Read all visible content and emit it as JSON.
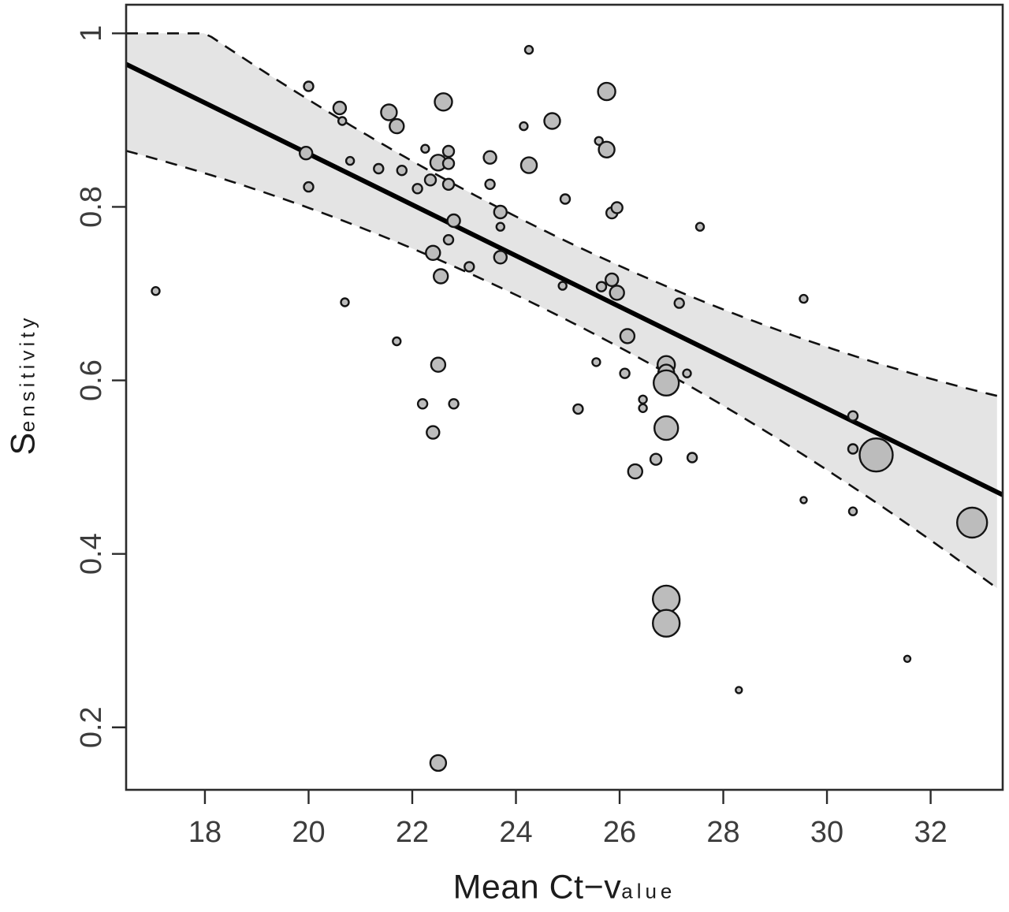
{
  "chart_data": {
    "type": "scatter",
    "subtype": "bubble-meta-regression",
    "title": "",
    "xlabel": "Mean Ct-value",
    "xlabel_parts": [
      "Mean Ct−v",
      "alue"
    ],
    "ylabel": "Sensitivity",
    "ylabel_parts": [
      "S",
      "ensitivity"
    ],
    "x_ticks": [
      18,
      20,
      22,
      24,
      26,
      28,
      30,
      32
    ],
    "y_ticks": [
      0.2,
      0.4,
      0.6,
      0.8,
      1
    ],
    "y_tick_labels": [
      "0.2",
      "0.4",
      "0.6",
      "0.8",
      "1"
    ],
    "xlim": [
      16.48,
      33.39
    ],
    "ylim": [
      0.128,
      1.033
    ],
    "grid": false,
    "legend": null,
    "regression_line": {
      "x": [
        16.48,
        33.39
      ],
      "y": [
        0.9645,
        0.468
      ]
    },
    "confidence_band": {
      "style": "dashed",
      "w_min": 0.045,
      "w_center_x": 24.5,
      "w_curvature": 0.000855,
      "clip_max_y": 1.0,
      "left_upper": 1.0,
      "left_lower": 0.865,
      "right_upper": 0.581,
      "right_lower": 0.355
    },
    "points_format": [
      "mean_ct",
      "sensitivity",
      "bubble_radius_px"
    ],
    "points": [
      [
        20.0,
        0.939,
        6
      ],
      [
        20.6,
        0.914,
        8
      ],
      [
        20.65,
        0.899,
        5
      ],
      [
        21.55,
        0.909,
        10
      ],
      [
        21.7,
        0.893,
        9
      ],
      [
        22.6,
        0.921,
        11
      ],
      [
        24.25,
        0.981,
        5
      ],
      [
        24.15,
        0.893,
        5
      ],
      [
        19.95,
        0.862,
        8
      ],
      [
        20.8,
        0.853,
        5
      ],
      [
        21.35,
        0.844,
        6
      ],
      [
        21.8,
        0.842,
        6
      ],
      [
        22.25,
        0.867,
        5
      ],
      [
        22.5,
        0.851,
        10
      ],
      [
        22.7,
        0.864,
        7
      ],
      [
        22.7,
        0.85,
        7
      ],
      [
        23.5,
        0.857,
        8
      ],
      [
        24.25,
        0.848,
        10
      ],
      [
        20.0,
        0.823,
        6
      ],
      [
        22.1,
        0.821,
        6
      ],
      [
        22.35,
        0.831,
        7
      ],
      [
        22.7,
        0.826,
        7
      ],
      [
        23.5,
        0.826,
        6
      ],
      [
        23.7,
        0.794,
        8
      ],
      [
        23.7,
        0.777,
        5
      ],
      [
        22.8,
        0.784,
        8
      ],
      [
        22.7,
        0.762,
        6
      ],
      [
        25.75,
        0.933,
        11
      ],
      [
        24.7,
        0.899,
        10
      ],
      [
        25.6,
        0.876,
        5
      ],
      [
        25.75,
        0.866,
        10
      ],
      [
        24.95,
        0.809,
        6
      ],
      [
        25.85,
        0.793,
        7
      ],
      [
        25.95,
        0.799,
        7
      ],
      [
        27.55,
        0.777,
        5
      ],
      [
        22.4,
        0.747,
        9
      ],
      [
        23.7,
        0.742,
        8
      ],
      [
        23.1,
        0.731,
        6
      ],
      [
        22.55,
        0.72,
        9
      ],
      [
        20.7,
        0.69,
        5
      ],
      [
        17.05,
        0.703,
        5
      ],
      [
        21.7,
        0.645,
        5
      ],
      [
        22.5,
        0.618,
        9
      ],
      [
        22.2,
        0.573,
        6
      ],
      [
        22.8,
        0.573,
        6
      ],
      [
        22.4,
        0.54,
        8
      ],
      [
        24.9,
        0.709,
        5
      ],
      [
        25.65,
        0.708,
        6
      ],
      [
        25.85,
        0.716,
        8
      ],
      [
        25.95,
        0.701,
        9
      ],
      [
        27.15,
        0.689,
        6
      ],
      [
        26.15,
        0.651,
        9
      ],
      [
        25.55,
        0.621,
        5
      ],
      [
        26.1,
        0.608,
        6
      ],
      [
        26.9,
        0.618,
        11
      ],
      [
        26.9,
        0.609,
        10
      ],
      [
        26.9,
        0.597,
        16
      ],
      [
        27.3,
        0.608,
        5
      ],
      [
        26.45,
        0.578,
        5
      ],
      [
        26.45,
        0.568,
        5
      ],
      [
        25.2,
        0.567,
        6
      ],
      [
        26.9,
        0.545,
        15
      ],
      [
        29.55,
        0.694,
        5
      ],
      [
        30.5,
        0.559,
        6
      ],
      [
        30.5,
        0.521,
        6
      ],
      [
        30.95,
        0.514,
        21
      ],
      [
        29.55,
        0.462,
        4
      ],
      [
        30.5,
        0.449,
        5
      ],
      [
        32.8,
        0.436,
        19
      ],
      [
        26.3,
        0.495,
        9
      ],
      [
        26.7,
        0.509,
        7
      ],
      [
        27.4,
        0.511,
        6
      ],
      [
        26.9,
        0.348,
        17
      ],
      [
        26.9,
        0.32,
        17
      ],
      [
        28.3,
        0.243,
        4
      ],
      [
        22.5,
        0.159,
        10
      ],
      [
        31.55,
        0.279,
        4
      ]
    ],
    "colors": {
      "background": "#ffffff",
      "band_fill": "#e4e4e4",
      "bubble_fill": "#bcbcbc",
      "bubble_stroke": "#141414",
      "line": "#000000",
      "dash": "#111111",
      "axis": "#2b2b2b",
      "tick_text": "#3c3c3c"
    }
  }
}
